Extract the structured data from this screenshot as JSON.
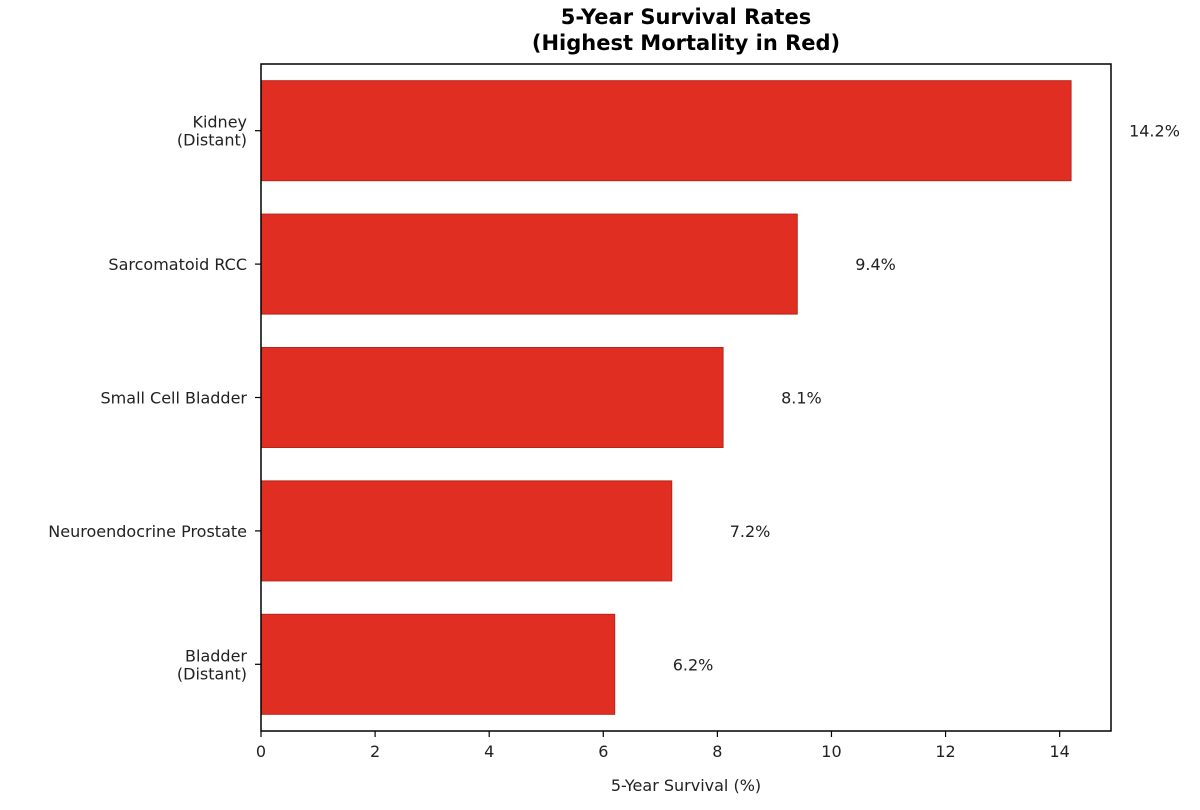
{
  "chart_data": {
    "type": "bar",
    "orientation": "horizontal",
    "title": "5-Year Survival Rates",
    "subtitle": "(Highest Mortality in Red)",
    "xlabel": "5-Year Survival (%)",
    "ylabel": "",
    "xlim": [
      0,
      14.9
    ],
    "xticks": [
      0,
      2,
      4,
      6,
      8,
      10,
      12,
      14
    ],
    "xtick_labels": [
      "0",
      "2",
      "4",
      "6",
      "8",
      "10",
      "12",
      "14"
    ],
    "grid": false,
    "categories": [
      [
        "Kidney",
        "(Distant)"
      ],
      [
        "Sarcomatoid RCC"
      ],
      [
        "Small Cell Bladder"
      ],
      [
        "Neuroendocrine Prostate"
      ],
      [
        "Bladder",
        "(Distant)"
      ]
    ],
    "values": [
      14.2,
      9.4,
      8.1,
      7.2,
      6.2
    ],
    "data_labels": [
      "14.2%",
      "9.4%",
      "8.1%",
      "7.2%",
      "6.2%"
    ],
    "bar_color": "#e02e22",
    "bar_edge_color": "#b8241a"
  }
}
